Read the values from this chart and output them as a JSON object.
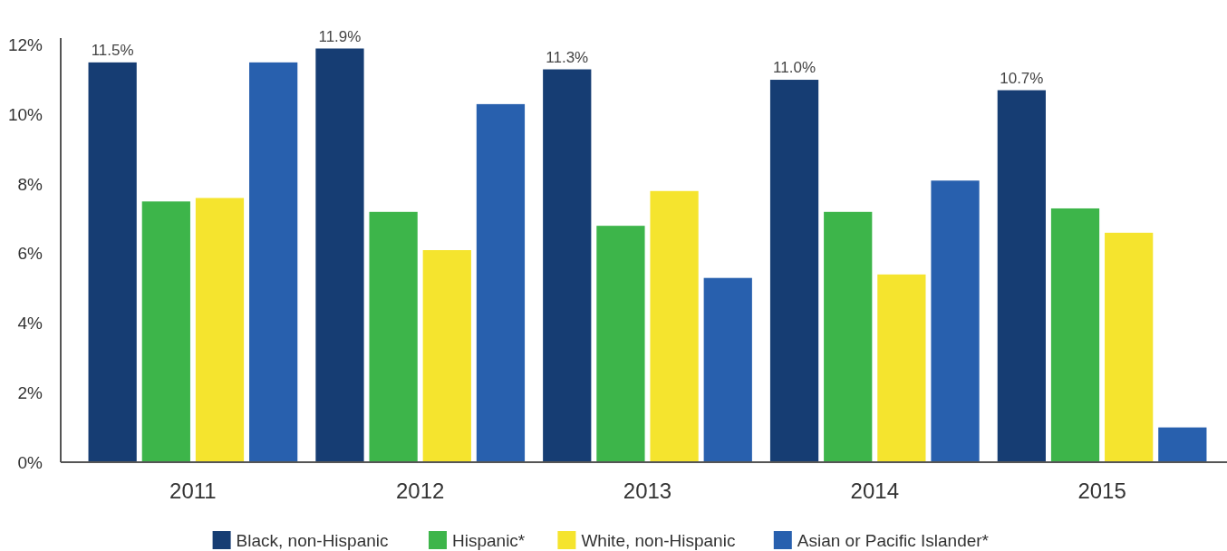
{
  "chart_data": {
    "type": "bar",
    "categories": [
      "2011",
      "2012",
      "2013",
      "2014",
      "2015"
    ],
    "series": [
      {
        "name": "Black, non-Hispanic",
        "color": "#163d73",
        "values": [
          11.5,
          11.9,
          11.3,
          11.0,
          10.7
        ],
        "value_labels": [
          "11.5%",
          "11.9%",
          "11.3%",
          "11.0%",
          "10.7%"
        ]
      },
      {
        "name": "Hispanic*",
        "color": "#3db54a",
        "values": [
          7.5,
          7.2,
          6.8,
          7.2,
          7.3
        ]
      },
      {
        "name": "White, non-Hispanic",
        "color": "#f5e42e",
        "values": [
          7.6,
          6.1,
          7.8,
          5.4,
          6.6
        ]
      },
      {
        "name": "Asian or Pacific Islander*",
        "color": "#2860ae",
        "values": [
          11.5,
          10.3,
          5.3,
          8.1,
          1.0
        ]
      }
    ],
    "ylim": [
      0,
      12.2
    ],
    "yticks": [
      {
        "value": 0,
        "label": "0%"
      },
      {
        "value": 2,
        "label": "2%"
      },
      {
        "value": 4,
        "label": "4%"
      },
      {
        "value": 6,
        "label": "6%"
      },
      {
        "value": 8,
        "label": "8%"
      },
      {
        "value": 10,
        "label": "10%"
      },
      {
        "value": 12,
        "label": "12%"
      }
    ],
    "legend": "bottom"
  }
}
